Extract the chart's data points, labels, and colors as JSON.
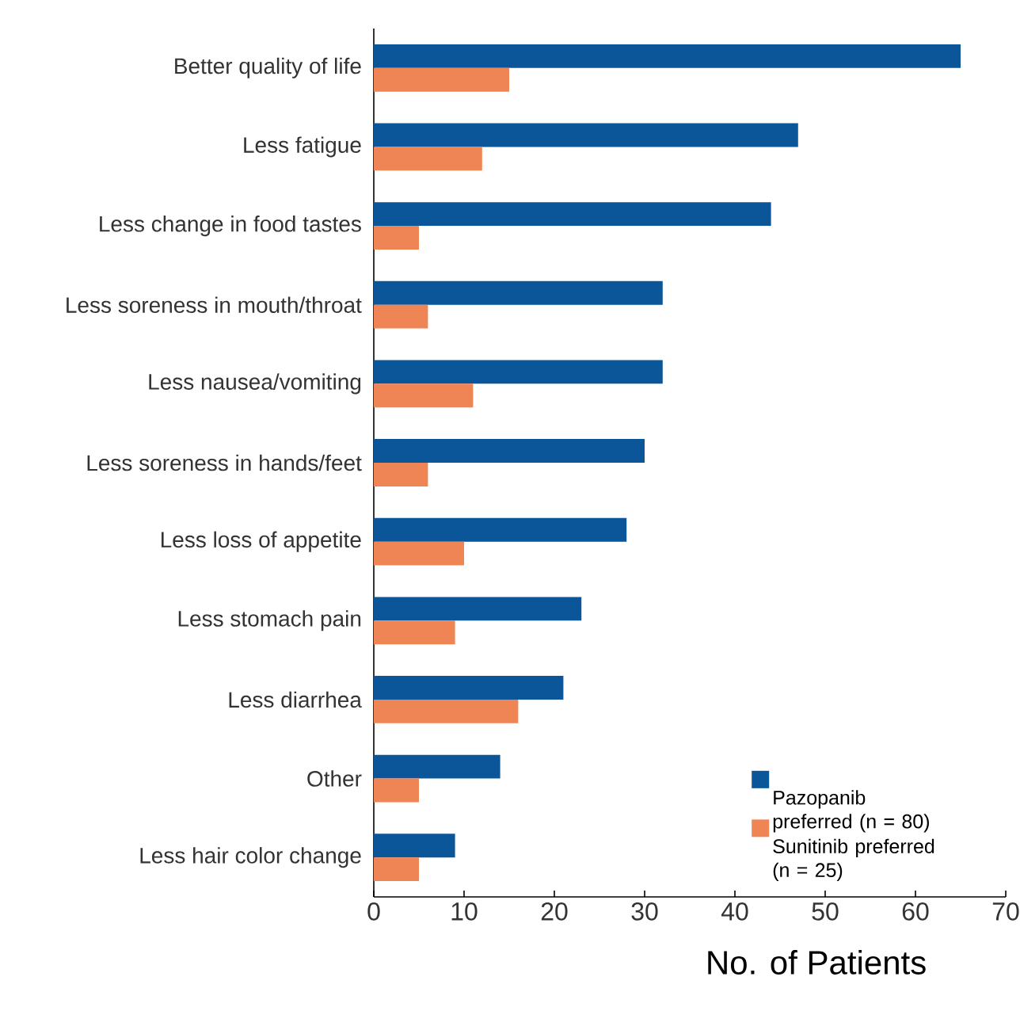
{
  "chart_data": {
    "type": "bar",
    "orientation": "horizontal",
    "xlabel": "No. of Patients",
    "categories": [
      "Better quality of life",
      "Less fatigue",
      "Less change in food tastes",
      "Less soreness in mouth/throat",
      "Less nausea/vomiting",
      "Less soreness in hands/feet",
      "Less loss of appetite",
      "Less stomach pain",
      "Less diarrhea",
      "Other",
      "Less hair color change"
    ],
    "series": [
      {
        "name": "Pazopanib preferred (n = 80)",
        "color": "#0a5699",
        "values": [
          65,
          47,
          44,
          32,
          32,
          30,
          28,
          23,
          21,
          14,
          9
        ]
      },
      {
        "name": "Sunitinib preferred (n = 25)",
        "color": "#ef8554",
        "values": [
          15,
          12,
          5,
          6,
          11,
          6,
          10,
          9,
          16,
          5,
          5
        ]
      }
    ],
    "xlim": [
      0,
      70
    ],
    "xticks": [
      0,
      10,
      20,
      30,
      40,
      50,
      60,
      70
    ],
    "legend": "bottom right",
    "grid": false
  }
}
